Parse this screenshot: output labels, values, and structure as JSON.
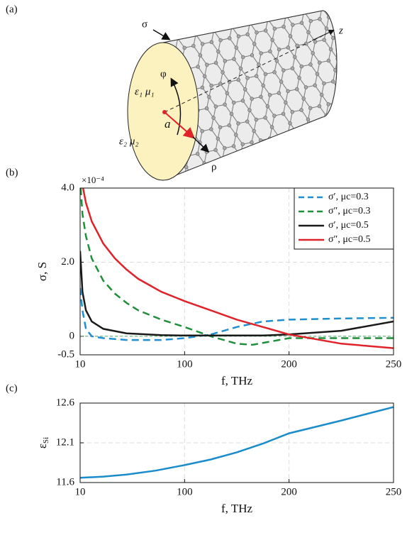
{
  "panels": [
    "(a)",
    "(b)",
    "(c)"
  ],
  "diagram": {
    "sigma": "σ",
    "z": "z",
    "phi": "φ",
    "inner": "ε₁ μ₁",
    "radius": "a",
    "outer": "ε₂ μ₂",
    "rho": "ρ"
  },
  "chart_data": [
    {
      "type": "line",
      "ylabel": "σ, S",
      "xlabel": "f, THz",
      "y_multiplier": "×10⁻⁴",
      "xlim": [
        10,
        250
      ],
      "xticks": [
        10,
        100,
        200,
        250
      ],
      "ylim": [
        -0.5,
        4
      ],
      "yticks": [
        -0.5,
        0,
        {
          "value": 2,
          "label": "2.0"
        },
        {
          "value": 4,
          "label": "4.0"
        }
      ],
      "grid": true,
      "legend": "upper right",
      "series": [
        {
          "name": "σ′, μc=0.3",
          "color": "#1f8fd0",
          "dash": true,
          "x": [
            10,
            12,
            15,
            20,
            30,
            50,
            80,
            100,
            125,
            150,
            175,
            200,
            225,
            250
          ],
          "values": [
            1.3,
            0.7,
            0.2,
            0.0,
            -0.05,
            -0.1,
            -0.1,
            -0.05,
            0.05,
            0.25,
            0.4,
            0.45,
            0.48,
            0.5
          ]
        },
        {
          "name": "σ″, μc=0.3",
          "color": "#1f8f3a",
          "dash": true,
          "x": [
            10.5,
            12,
            15,
            20,
            30,
            40,
            50,
            60,
            80,
            100,
            125,
            150,
            165,
            200,
            225,
            250
          ],
          "values": [
            4,
            3.3,
            2.7,
            2.1,
            1.5,
            1.15,
            0.9,
            0.7,
            0.45,
            0.25,
            0.0,
            -0.2,
            -0.23,
            -0.05,
            -0.05,
            -0.05
          ]
        },
        {
          "name": "σ′, μc=0.5",
          "color": "#1a1a1a",
          "dash": false,
          "x": [
            10,
            12,
            15,
            20,
            30,
            50,
            80,
            100,
            125,
            150,
            175,
            200,
            225,
            250
          ],
          "values": [
            2.3,
            1.2,
            0.7,
            0.4,
            0.2,
            0.08,
            0.03,
            0.02,
            0.02,
            0.02,
            0.02,
            0.05,
            0.15,
            0.4
          ]
        },
        {
          "name": "σ″, μc=0.5",
          "color": "#e0232a",
          "dash": false,
          "x": [
            12.5,
            15,
            20,
            30,
            40,
            50,
            60,
            80,
            100,
            125,
            150,
            175,
            200,
            225,
            250
          ],
          "values": [
            4,
            3.6,
            3.1,
            2.5,
            2.1,
            1.8,
            1.55,
            1.2,
            0.95,
            0.7,
            0.45,
            0.25,
            0.05,
            -0.2,
            -0.32
          ]
        }
      ]
    },
    {
      "type": "line",
      "ylabel": "ε",
      "ylabel_sub": "Si",
      "xlabel": "f, THz",
      "xlim": [
        10,
        250
      ],
      "xticks": [
        10,
        100,
        200,
        250
      ],
      "ylim": [
        11.6,
        12.6
      ],
      "yticks": [
        11.6,
        12.1,
        12.6
      ],
      "grid": true,
      "series": [
        {
          "color": "#1a8ccc",
          "dash": false,
          "x": [
            10,
            30,
            50,
            75,
            100,
            125,
            150,
            175,
            200,
            225,
            250
          ],
          "values": [
            11.66,
            11.675,
            11.7,
            11.75,
            11.82,
            11.89,
            11.98,
            12.09,
            12.22,
            12.38,
            12.55
          ]
        }
      ]
    }
  ]
}
